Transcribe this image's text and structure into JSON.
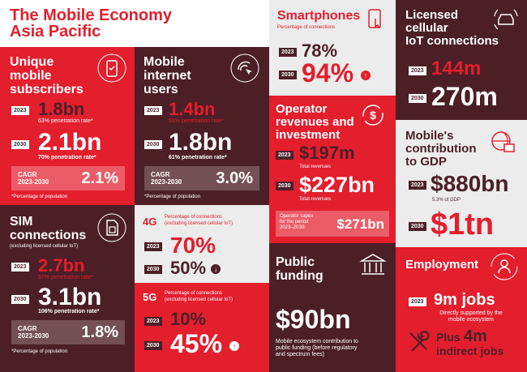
{
  "header": {
    "line1": "The Mobile Economy",
    "line2": "Asia Pacific"
  },
  "unique": {
    "title1": "Unique",
    "title2": "mobile",
    "title3": "subscribers",
    "y1": "2023",
    "v1": "1.8bn",
    "n1": "63% penetration rate*",
    "y2": "2030",
    "v2": "2.1bn",
    "n2": "70% penetration rate*",
    "cagr1": "CAGR",
    "cagr2": "2023-2030",
    "cagr": "2.1%",
    "foot": "*Percentage of population"
  },
  "internet": {
    "title1": "Mobile",
    "title2": "internet",
    "title3": "users",
    "y1": "2023",
    "v1": "1.4bn",
    "n1": "51% penetration rate*",
    "y2": "2030",
    "v2": "1.8bn",
    "n2": "61% penetration rate*",
    "cagr1": "CAGR",
    "cagr2": "2023-2030",
    "cagr": "3.0%",
    "foot": "*Percentage of population"
  },
  "sim": {
    "title1": "SIM",
    "title2": "connections",
    "sub": "(excluding licensed cellular IoT)",
    "y1": "2023",
    "v1": "2.7bn",
    "n1": "97% penetration rate*",
    "y2": "2030",
    "v2": "3.1bn",
    "n2": "106% penetration rate*",
    "cagr1": "CAGR",
    "cagr2": "2023-2030",
    "cagr": "1.8%",
    "foot": "*Percentage of population"
  },
  "g4": {
    "label": "4G",
    "desc1": "Percentage of connections",
    "desc2": "(excluding licensed cellular IoT)",
    "y1": "2023",
    "v1": "70%",
    "y2": "2030",
    "v2": "50%"
  },
  "g5": {
    "label": "5G",
    "desc1": "Percentage of connections",
    "desc2": "(excluding licensed cellular IoT)",
    "y1": "2023",
    "v1": "10%",
    "y2": "2030",
    "v2": "45%"
  },
  "smart": {
    "title": "Smartphones",
    "sub": "Percentage of connections",
    "y1": "2023",
    "v1": "78%",
    "y2": "2030",
    "v2": "94%"
  },
  "opex": {
    "title1": "Operator",
    "title2": "revenues and",
    "title3": "investment",
    "y1": "2023",
    "v1": "$197m",
    "n1": "Total revenues",
    "y2": "2030",
    "v2": "$227bn",
    "n2": "Total revenues",
    "capex1": "Operator capex",
    "capex2": "for the period",
    "capex3": "2023–2030:",
    "capex": "$271bn"
  },
  "funding": {
    "title1": "Public",
    "title2": "funding",
    "v": "$90bn",
    "d1": "Mobile ecosystem contribution to",
    "d2": "public funding (before regulatory",
    "d3": "and spectrum fees)"
  },
  "iot": {
    "title1": "Licensed",
    "title2": "cellular",
    "title3": "IoT connections",
    "y1": "2023",
    "v1": "144m",
    "y2": "2030",
    "v2": "270m"
  },
  "gdp": {
    "title1": "Mobile's",
    "title2": "contribution",
    "title3": "to GDP",
    "y1": "2023",
    "v1": "$880bn",
    "n1": "5.3% of GDP",
    "y2": "2030",
    "v2": "$1tn"
  },
  "employ": {
    "title": "Employment",
    "y": "2023",
    "v": "9m jobs",
    "d1": "Directly supported by the",
    "d2": "mobile ecosystem",
    "plus": "Plus",
    "v2": "4m",
    "d3": "indirect jobs"
  },
  "colors": {
    "red": "#e31e2d",
    "dark": "#4c1f27",
    "light": "#ececec"
  }
}
